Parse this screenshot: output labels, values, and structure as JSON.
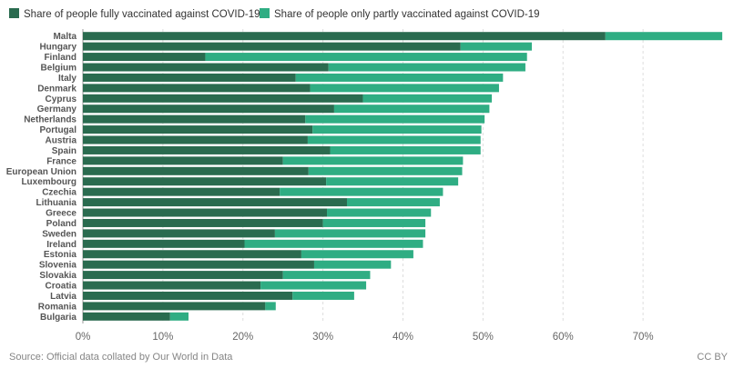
{
  "chart_data": {
    "type": "bar",
    "orientation": "horizontal",
    "stacked": true,
    "legend": "top-left",
    "series": [
      {
        "name": "Share of people fully vaccinated against COVID-19",
        "color": "#2a6b4f",
        "values": [
          65.3,
          47.2,
          15.3,
          30.7,
          26.6,
          28.4,
          35.0,
          31.4,
          27.8,
          28.7,
          28.1,
          30.9,
          25.0,
          28.2,
          30.4,
          24.6,
          33.0,
          30.5,
          30.0,
          24.0,
          20.2,
          27.3,
          28.9,
          25.0,
          22.2,
          26.2,
          22.8,
          10.9
        ]
      },
      {
        "name": "Share of people only partly vaccinated against COVID-19",
        "color": "#2fad83",
        "values": [
          14.6,
          8.9,
          40.2,
          24.6,
          25.9,
          23.6,
          16.1,
          19.4,
          22.4,
          21.1,
          21.6,
          18.8,
          22.5,
          19.2,
          16.5,
          20.4,
          11.6,
          13.0,
          12.8,
          18.8,
          22.3,
          14.0,
          9.6,
          10.9,
          13.2,
          7.7,
          1.3,
          2.3
        ]
      }
    ],
    "categories": [
      "Malta",
      "Hungary",
      "Finland",
      "Belgium",
      "Italy",
      "Denmark",
      "Cyprus",
      "Germany",
      "Netherlands",
      "Portugal",
      "Austria",
      "Spain",
      "France",
      "European Union",
      "Luxembourg",
      "Czechia",
      "Lithuania",
      "Greece",
      "Poland",
      "Sweden",
      "Ireland",
      "Estonia",
      "Slovenia",
      "Slovakia",
      "Croatia",
      "Latvia",
      "Romania",
      "Bulgaria"
    ],
    "xlim": [
      0,
      80
    ],
    "xticks": [
      0,
      10,
      20,
      30,
      40,
      50,
      60,
      70
    ],
    "xtick_labels": [
      "0%",
      "10%",
      "20%",
      "30%",
      "40%",
      "50%",
      "60%",
      "70%"
    ],
    "grid": "vertical dashed"
  },
  "source_note": "Source: Official data collated by Our World in Data",
  "license": "CC BY"
}
